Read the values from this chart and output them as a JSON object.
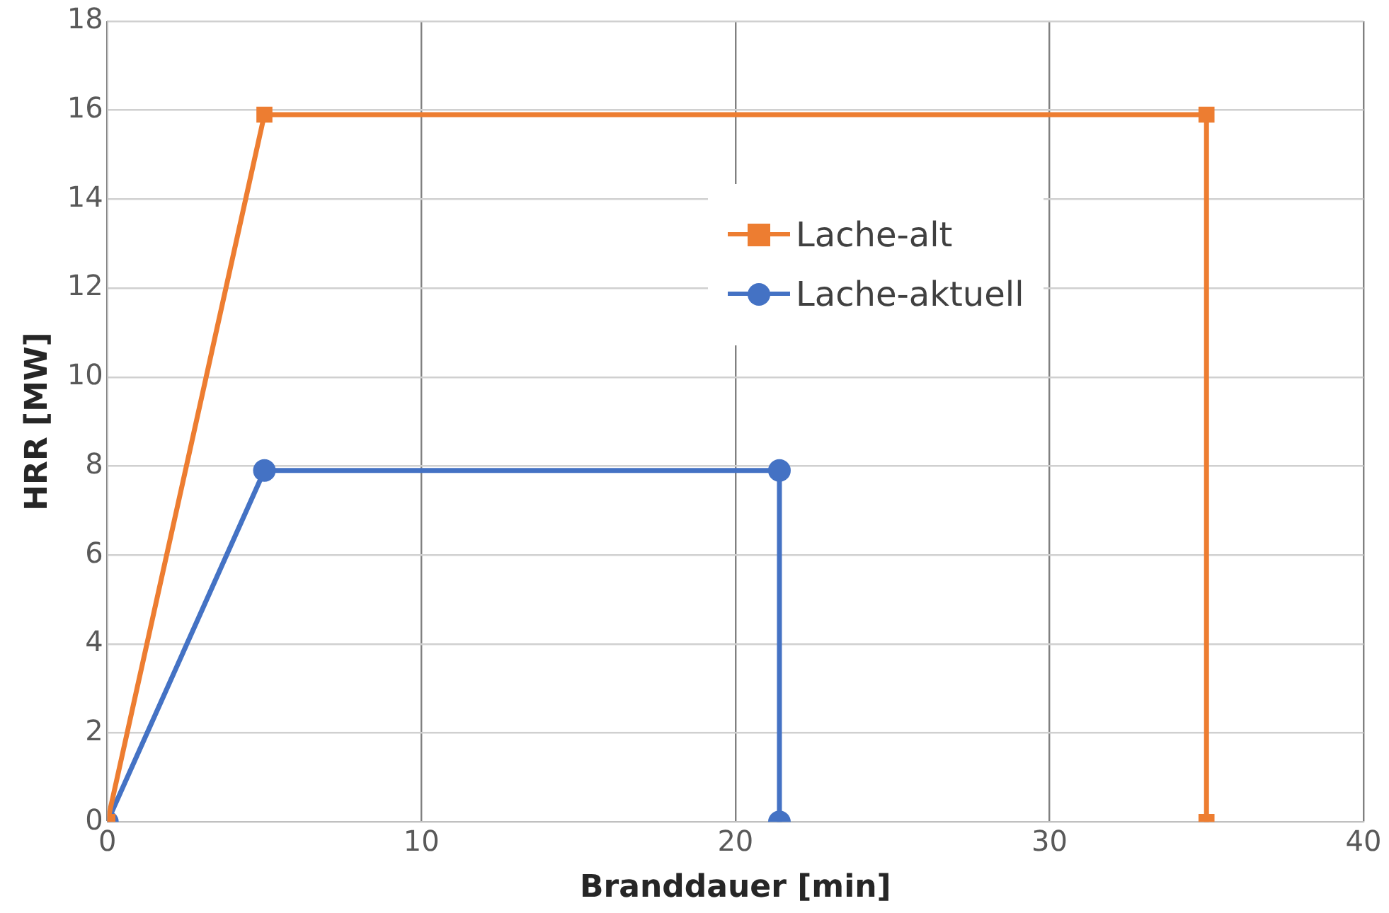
{
  "chart_data": {
    "type": "line",
    "xlabel": "Branddauer [min]",
    "ylabel": "HRR [MW]",
    "xlim": [
      0,
      40
    ],
    "xticks": [
      0,
      10,
      20,
      30,
      40
    ],
    "ylim": [
      0,
      18
    ],
    "yticks": [
      0,
      2,
      4,
      6,
      8,
      10,
      12,
      14,
      16,
      18
    ],
    "grid": true,
    "legend": "top right",
    "line_style": "solid",
    "series": [
      {
        "name": "Lache-alt",
        "color": "#ed7d31",
        "marker": "square",
        "x": [
          0,
          5,
          35,
          35
        ],
        "values": [
          0,
          15.9,
          15.9,
          0
        ]
      },
      {
        "name": "Lache-aktuell",
        "color": "#4472c4",
        "marker": "circle",
        "x": [
          0,
          5,
          21.4,
          21.4
        ],
        "values": [
          0,
          7.9,
          7.9,
          0
        ]
      }
    ]
  }
}
